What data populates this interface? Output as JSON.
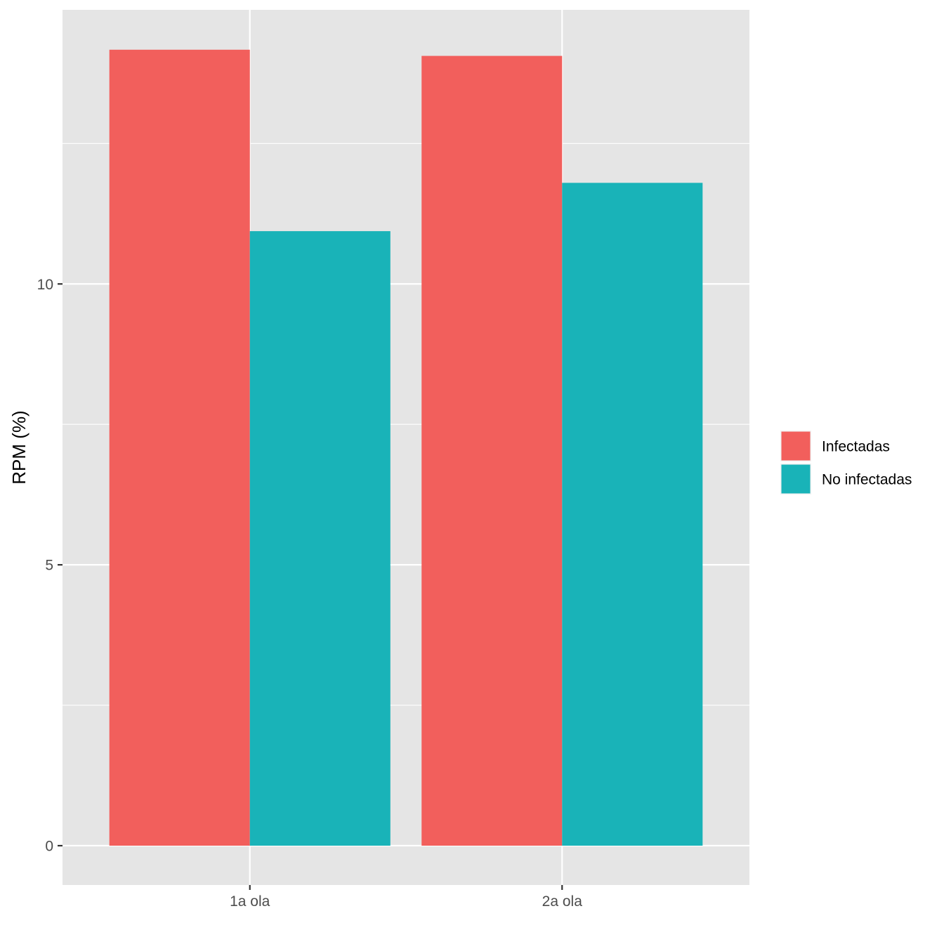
{
  "chart_data": {
    "type": "bar",
    "title": "",
    "xlabel": "",
    "ylabel": "RPM (%)",
    "categories": [
      "1a ola",
      "2a ola"
    ],
    "series": [
      {
        "name": "Infectadas",
        "values": [
          14.17,
          14.06
        ],
        "color": "#F25F5C"
      },
      {
        "name": "No infectadas",
        "values": [
          10.94,
          11.8
        ],
        "color": "#19B3B8"
      }
    ],
    "ylim": [
      -0.7,
      14.88
    ],
    "yticks": [
      0,
      5,
      10
    ],
    "ytick_labels": [
      "0",
      "5",
      "10"
    ],
    "grid": true,
    "legend_position": "right",
    "panel_background": "#E5E5E5",
    "grid_color": "#FFFFFF"
  }
}
